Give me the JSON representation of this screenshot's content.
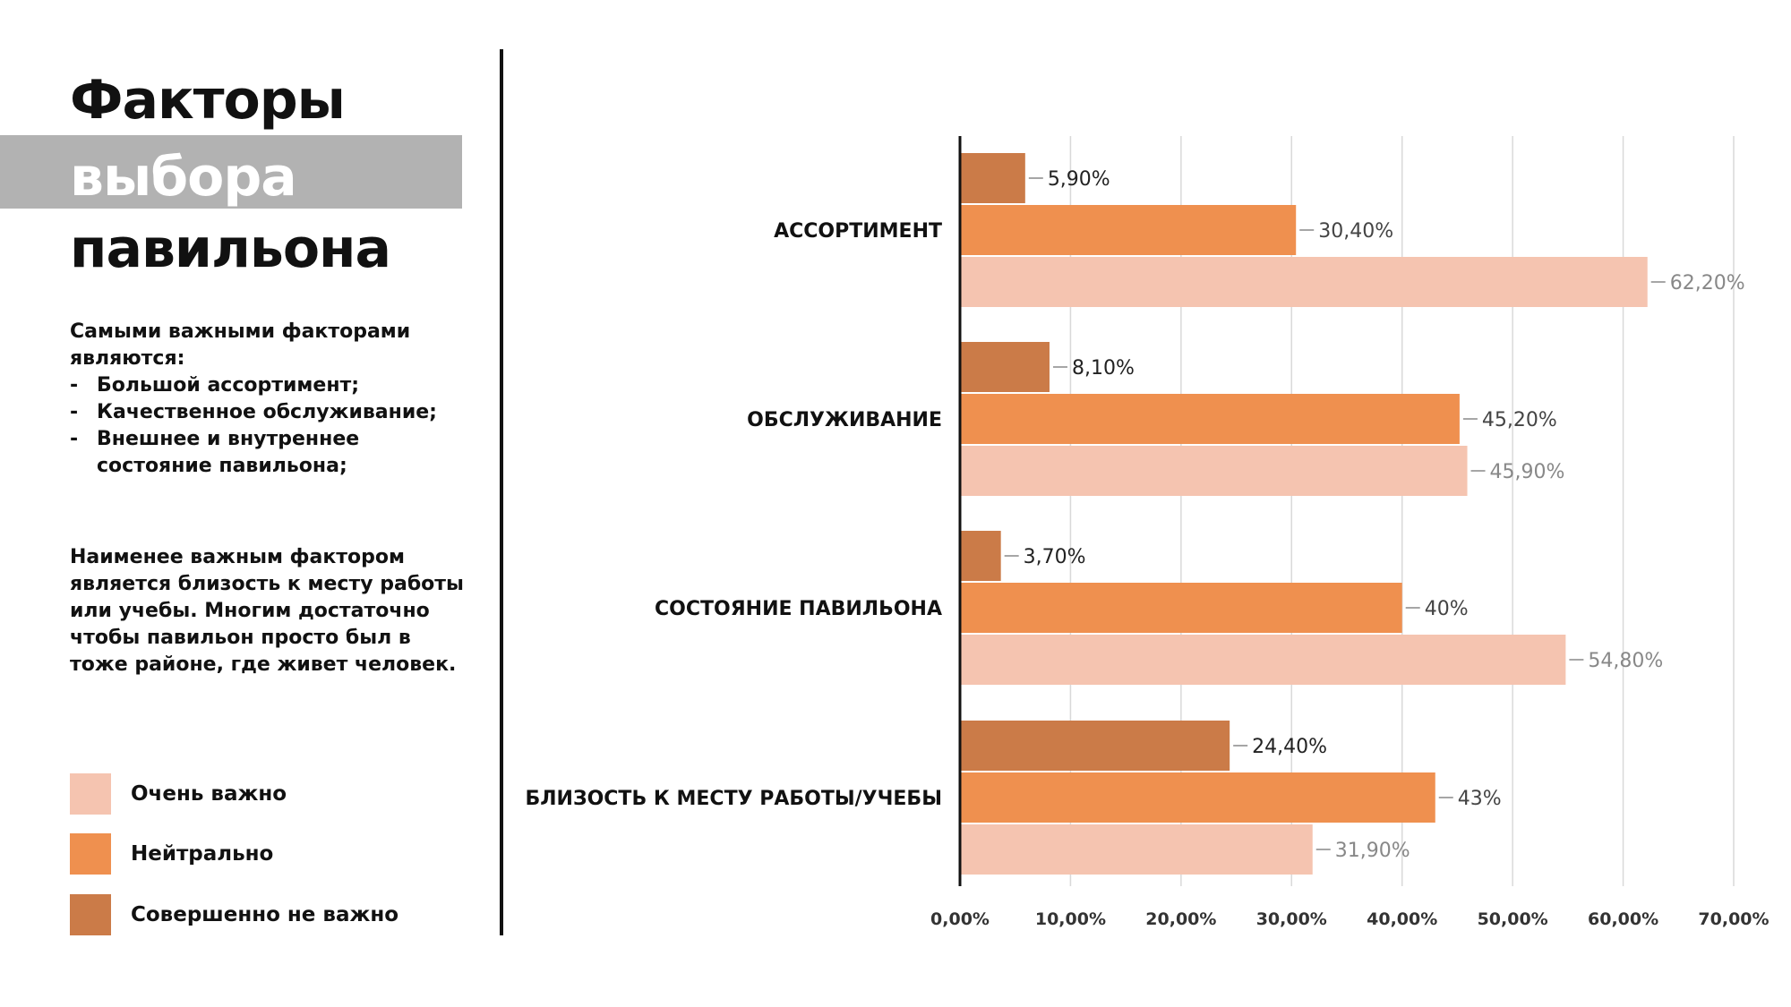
{
  "title": {
    "line1": "Факторы",
    "line2": "выбора",
    "line3": "павильона"
  },
  "description": {
    "intro": "Самыми важными факторами являются:",
    "items": [
      "Большой ассортимент;",
      "Качественное обслуживание;",
      "Внешнее и внутреннее состояние павильона;"
    ],
    "note": "Наименее важным фактором является близость к месту работы или учебы. Многим достаточно чтобы павильон просто был в тоже районе, где живет человек."
  },
  "colors": {
    "very_important": "#f5c4b0",
    "neutral": "#ef904f",
    "not_important": "#cb7b48",
    "title_band": "#b2b2b2",
    "grid": "#d9d9d9",
    "axis": "#111111"
  },
  "chart_data": {
    "type": "bar",
    "orientation": "horizontal",
    "categories": [
      "АССОРТИМЕНТ",
      "ОБСЛУЖИВАНИЕ",
      "СОСТОЯНИЕ ПАВИЛЬОНА",
      "БЛИЗОСТЬ К МЕСТУ РАБОТЫ/УЧЕБЫ"
    ],
    "series": [
      {
        "name": "Совершенно не важно",
        "color": "#cb7b48",
        "values": [
          5.9,
          8.1,
          3.7,
          24.4
        ],
        "labels": [
          "5,90%",
          "8,10%",
          "3,70%",
          "24,40%"
        ],
        "label_color": "#222222"
      },
      {
        "name": "Нейтрально",
        "color": "#ef904f",
        "values": [
          30.4,
          45.2,
          40,
          43
        ],
        "labels": [
          "30,40%",
          "45,20%",
          "40%",
          "43%"
        ],
        "label_color": "#444444"
      },
      {
        "name": "Очень важно",
        "color": "#f5c4b0",
        "values": [
          62.2,
          45.9,
          54.8,
          31.9
        ],
        "labels": [
          "62,20%",
          "45,90%",
          "54,80%",
          "31,90%"
        ],
        "label_color": "#888888"
      }
    ],
    "xlim": [
      0,
      70
    ],
    "xticks": [
      0,
      10,
      20,
      30,
      40,
      50,
      60,
      70
    ],
    "xtick_labels": [
      "0,00%",
      "10,00%",
      "20,00%",
      "30,00%",
      "40,00%",
      "50,00%",
      "60,00%",
      "70,00%"
    ],
    "grid": true,
    "legend": [
      {
        "name": "Очень важно",
        "color": "#f5c4b0"
      },
      {
        "name": "Нейтрально",
        "color": "#ef904f"
      },
      {
        "name": "Совершенно не важно",
        "color": "#cb7b48"
      }
    ],
    "legend_position": "bottom-left"
  }
}
